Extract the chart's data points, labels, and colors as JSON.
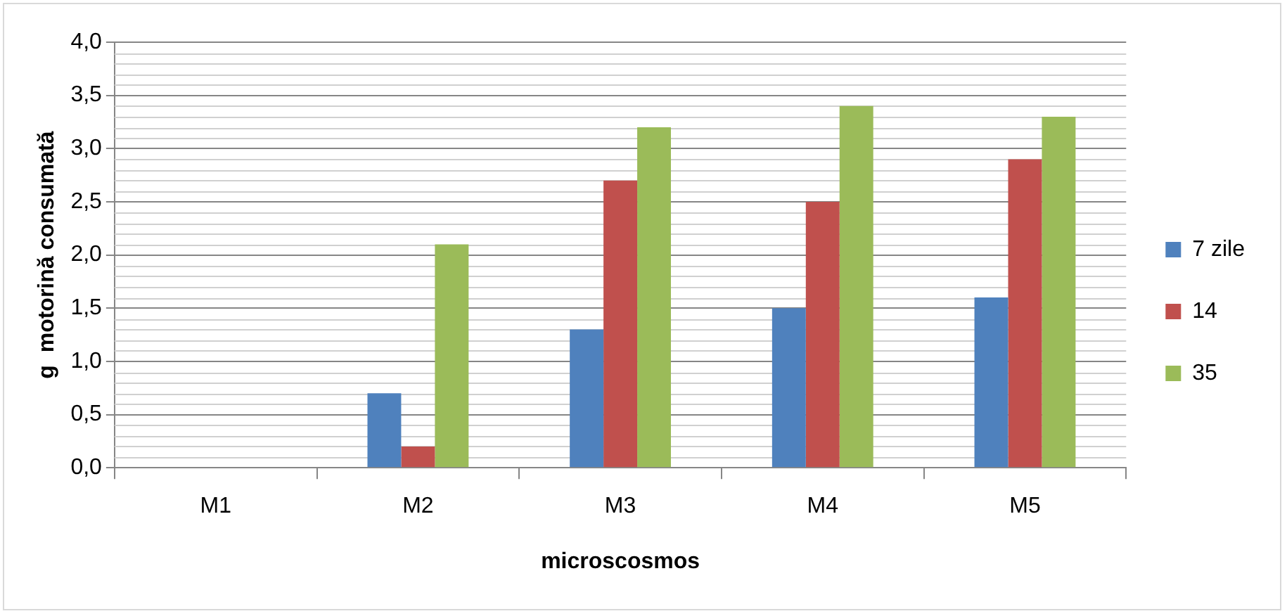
{
  "chart_data": {
    "type": "bar",
    "xlabel": "microscosmos",
    "ylabel": "g  motorină consumată",
    "categories": [
      "M1",
      "M2",
      "M3",
      "M4",
      "M5"
    ],
    "series": [
      {
        "name": "7 zile",
        "color": "#4f81bd",
        "values": [
          0,
          0.7,
          1.3,
          1.5,
          1.6
        ]
      },
      {
        "name": "14",
        "color": "#c0504d",
        "values": [
          0,
          0.2,
          2.7,
          2.5,
          2.9
        ]
      },
      {
        "name": "35",
        "color": "#9bbb59",
        "values": [
          0,
          2.1,
          3.2,
          3.4,
          3.3
        ]
      }
    ],
    "ylim": [
      0,
      4
    ],
    "yticks": [
      {
        "value": 0,
        "label": "0,0"
      },
      {
        "value": 0.5,
        "label": "0,5"
      },
      {
        "value": 1,
        "label": "1,0"
      },
      {
        "value": 1.5,
        "label": "1,5"
      },
      {
        "value": 2,
        "label": "2,0"
      },
      {
        "value": 2.5,
        "label": "2,5"
      },
      {
        "value": 3,
        "label": "3,0"
      },
      {
        "value": 3.5,
        "label": "3,5"
      },
      {
        "value": 4,
        "label": "4,0"
      }
    ],
    "grid": true,
    "legend": "right"
  }
}
